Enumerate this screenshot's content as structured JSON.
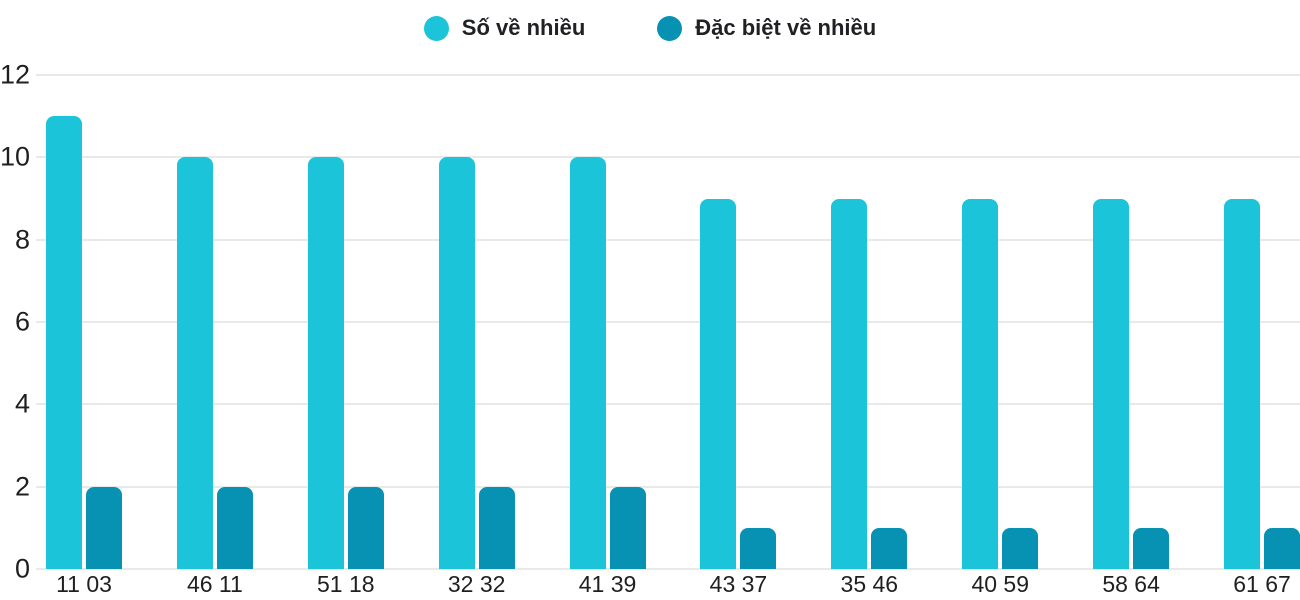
{
  "chart_data": {
    "type": "bar",
    "title": "",
    "categories": [
      "11 03",
      "46 11",
      "51 18",
      "32 32",
      "41 39",
      "43 37",
      "35 46",
      "40 59",
      "58 64",
      "61 67"
    ],
    "series": [
      {
        "name": "Số về nhiều",
        "color": "#1BC4D9",
        "values": [
          11,
          10,
          10,
          10,
          10,
          9,
          9,
          9,
          9,
          9
        ]
      },
      {
        "name": "Đặc biệt về nhiều",
        "color": "#0791B2",
        "values": [
          2,
          2,
          2,
          2,
          2,
          1,
          1,
          1,
          1,
          1
        ]
      }
    ],
    "xlabel": "",
    "ylabel": "",
    "ylim": [
      0,
      12
    ],
    "yticks": [
      0,
      2,
      4,
      6,
      8,
      10,
      12
    ],
    "grid": true,
    "legend_position": "top-center"
  },
  "colors": {
    "background": "#FFFFFF",
    "grid": "#E9E9E9",
    "text": "#1F1F1F",
    "series_light": "#1BC4D9",
    "series_dark": "#0791B2"
  }
}
